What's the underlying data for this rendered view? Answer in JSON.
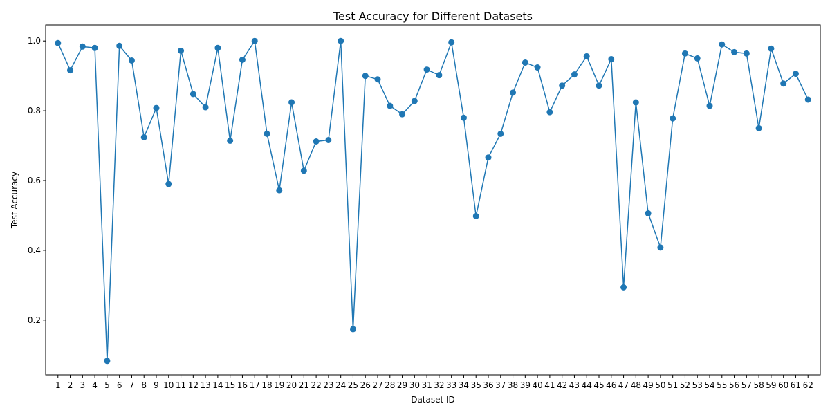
{
  "chart_data": {
    "type": "line",
    "title": "Test Accuracy for Different Datasets",
    "xlabel": "Dataset ID",
    "ylabel": "Test Accuracy",
    "grid": false,
    "legend": "none",
    "series_color": "#1f77b4",
    "marker": "circle",
    "x": [
      1,
      2,
      3,
      4,
      5,
      6,
      7,
      8,
      9,
      10,
      11,
      12,
      13,
      14,
      15,
      16,
      17,
      18,
      19,
      20,
      21,
      22,
      23,
      24,
      25,
      26,
      27,
      28,
      29,
      30,
      31,
      32,
      33,
      34,
      35,
      36,
      37,
      38,
      39,
      40,
      41,
      42,
      43,
      44,
      45,
      46,
      47,
      48,
      49,
      50,
      51,
      52,
      53,
      54,
      55,
      56,
      57,
      58,
      59,
      60,
      61,
      62
    ],
    "x_tick_labels": [
      "1",
      "2",
      "3",
      "4",
      "5",
      "6",
      "7",
      "8",
      "9",
      "10",
      "11",
      "12",
      "13",
      "14",
      "15",
      "16",
      "17",
      "18",
      "19",
      "20",
      "21",
      "22",
      "23",
      "24",
      "25",
      "26",
      "27",
      "28",
      "29",
      "30",
      "31",
      "32",
      "33",
      "34",
      "35",
      "36",
      "37",
      "38",
      "39",
      "40",
      "41",
      "42",
      "43",
      "44",
      "45",
      "46",
      "47",
      "48",
      "49",
      "50",
      "51",
      "52",
      "53",
      "54",
      "55",
      "56",
      "57",
      "58",
      "59",
      "60",
      "61",
      "62"
    ],
    "y_tick_labels": [
      "0.2",
      "0.4",
      "0.6",
      "0.8",
      "1.0"
    ],
    "y_ticks": [
      0.2,
      0.4,
      0.6,
      0.8,
      1.0
    ],
    "ylim": [
      0.043,
      1.046
    ],
    "xlim": [
      0,
      63
    ],
    "series": [
      {
        "values": [
          0.994,
          0.916,
          0.984,
          0.98,
          0.083,
          0.986,
          0.944,
          0.724,
          0.808,
          0.59,
          0.972,
          0.848,
          0.81,
          0.98,
          0.714,
          0.946,
          1.0,
          0.734,
          0.572,
          0.824,
          0.628,
          0.712,
          0.716,
          1.0,
          0.174,
          0.9,
          0.89,
          0.814,
          0.79,
          0.828,
          0.918,
          0.902,
          0.996,
          0.78,
          0.498,
          0.666,
          0.734,
          0.852,
          0.938,
          0.924,
          0.796,
          0.872,
          0.904,
          0.956,
          0.872,
          0.948,
          0.294,
          0.824,
          0.506,
          0.408,
          0.778,
          0.964,
          0.95,
          0.814,
          0.99,
          0.968,
          0.964,
          0.75,
          0.978,
          0.878,
          0.906,
          0.832
        ]
      }
    ]
  }
}
